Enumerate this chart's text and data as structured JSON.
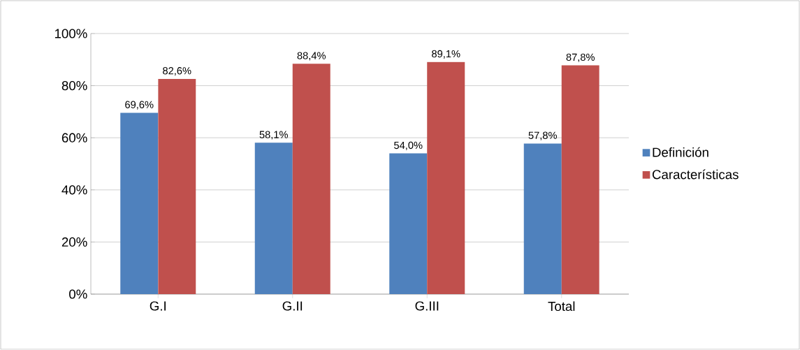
{
  "chart_data": {
    "type": "bar",
    "categories": [
      "G.I",
      "G.II",
      "G.III",
      "Total"
    ],
    "series": [
      {
        "name": "Definición",
        "color": "#4f81bd",
        "values": [
          69.6,
          58.1,
          54.0,
          57.8
        ],
        "value_labels": [
          "69,6%",
          "58,1%",
          "54,0%",
          "57,8%"
        ]
      },
      {
        "name": "Características",
        "color": "#c0504d",
        "values": [
          82.6,
          88.4,
          89.1,
          87.8
        ],
        "value_labels": [
          "82,6%",
          "88,4%",
          "89,1%",
          "87,8%"
        ]
      }
    ],
    "ylim": [
      0,
      100
    ],
    "yticks": [
      {
        "value": 0,
        "label": "0%"
      },
      {
        "value": 20,
        "label": "20%"
      },
      {
        "value": 40,
        "label": "40%"
      },
      {
        "value": 60,
        "label": "60%"
      },
      {
        "value": 80,
        "label": "80%"
      },
      {
        "value": 100,
        "label": "100%"
      }
    ],
    "grid": "y",
    "legend": "right"
  }
}
